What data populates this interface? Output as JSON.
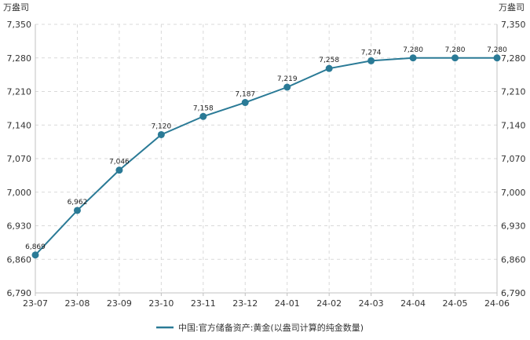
{
  "chart_data": {
    "type": "line",
    "title": "",
    "xlabel": "",
    "ylabel": "",
    "y_unit_left": "万盎司",
    "y_unit_right": "万盎司",
    "categories": [
      "23-07",
      "23-08",
      "23-09",
      "23-10",
      "23-11",
      "23-12",
      "24-01",
      "24-02",
      "24-03",
      "24-04",
      "24-05",
      "24-06"
    ],
    "y_ticks": [
      "6,790",
      "6,860",
      "6,930",
      "7,000",
      "7,070",
      "7,140",
      "7,210",
      "7,280",
      "7,350"
    ],
    "ylim": [
      6790,
      7350
    ],
    "grid": true,
    "legend_position": "bottom",
    "series": [
      {
        "name": "中国:官方储备资产:黄金(以盎司计算的纯金数量)",
        "color": "#2a7a96",
        "values": [
          6869,
          6962,
          7046,
          7120,
          7158,
          7187,
          7219,
          7258,
          7274,
          7280,
          7280,
          7280
        ],
        "labels": [
          "6,869",
          "6,962",
          "7,046",
          "7,120",
          "7,158",
          "7,187",
          "7,219",
          "7,258",
          "7,274",
          "7,280",
          "7,280",
          "7,280"
        ]
      }
    ]
  }
}
